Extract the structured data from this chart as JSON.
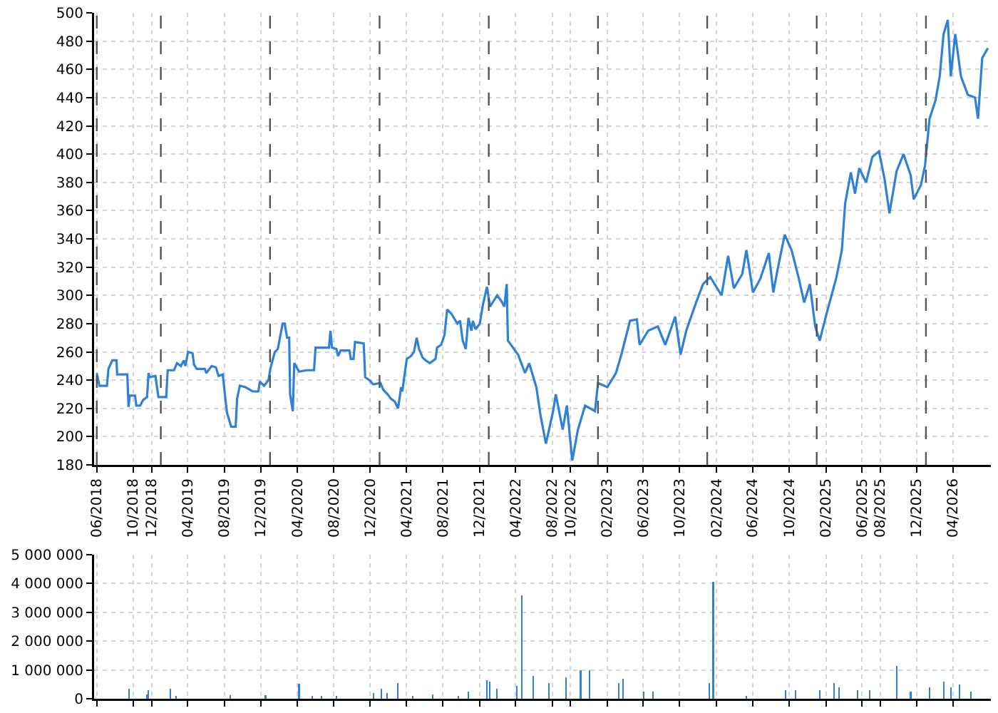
{
  "chart_data": [
    {
      "type": "line",
      "x": [
        "2018-06-01",
        "2018-06-10",
        "2018-07-05",
        "2018-07-10",
        "2018-07-23",
        "2018-08-06",
        "2018-08-08",
        "2018-09-11",
        "2018-09-15",
        "2018-09-19",
        "2018-10-07",
        "2018-10-11",
        "2018-10-24",
        "2018-11-03",
        "2018-11-16",
        "2018-11-21",
        "2018-11-25",
        "2018-12-14",
        "2018-12-24",
        "2019-01-19",
        "2019-01-24",
        "2019-02-14",
        "2019-02-24",
        "2019-03-09",
        "2019-03-19",
        "2019-03-24",
        "2019-04-02",
        "2019-04-17",
        "2019-04-22",
        "2019-05-01",
        "2019-05-28",
        "2019-06-02",
        "2019-06-20",
        "2019-07-04",
        "2019-07-13",
        "2019-07-27",
        "2019-08-03",
        "2019-08-10",
        "2019-08-24",
        "2019-09-08",
        "2019-09-13",
        "2019-09-22",
        "2019-10-11",
        "2019-11-04",
        "2019-11-23",
        "2019-11-28",
        "2019-12-12",
        "2019-12-27",
        "2020-01-02",
        "2020-01-17",
        "2020-01-27",
        "2020-02-12",
        "2020-02-19",
        "2020-02-27",
        "2020-03-05",
        "2020-03-08",
        "2020-03-17",
        "2020-03-22",
        "2020-04-07",
        "2020-05-02",
        "2020-05-27",
        "2020-06-01",
        "2020-07-16",
        "2020-07-21",
        "2020-07-26",
        "2020-08-10",
        "2020-08-15",
        "2020-08-24",
        "2020-09-22",
        "2020-09-27",
        "2020-10-06",
        "2020-10-11",
        "2020-11-09",
        "2020-11-14",
        "2020-11-28",
        "2020-12-11",
        "2021-01-04",
        "2021-01-14",
        "2021-01-28",
        "2021-02-07",
        "2021-02-20",
        "2021-03-04",
        "2021-03-14",
        "2021-03-18",
        "2021-04-02",
        "2021-04-16",
        "2021-04-26",
        "2021-05-05",
        "2021-05-13",
        "2021-05-25",
        "2021-06-04",
        "2021-06-18",
        "2021-07-07",
        "2021-07-12",
        "2021-07-26",
        "2021-08-06",
        "2021-08-15",
        "2021-08-29",
        "2021-09-18",
        "2021-09-27",
        "2021-10-06",
        "2021-10-16",
        "2021-10-25",
        "2021-11-04",
        "2021-11-09",
        "2021-11-18",
        "2021-12-02",
        "2021-12-12",
        "2021-12-26",
        "2022-01-05",
        "2022-01-29",
        "2022-02-12",
        "2022-02-22",
        "2022-03-02",
        "2022-03-06",
        "2022-04-09",
        "2022-05-02",
        "2022-05-16",
        "2022-06-09",
        "2022-06-23",
        "2022-07-11",
        "2022-08-04",
        "2022-08-13",
        "2022-09-05",
        "2022-09-19",
        "2022-10-07",
        "2022-10-26",
        "2022-11-19",
        "2022-12-22",
        "2023-01-01",
        "2023-02-01",
        "2023-03-02",
        "2023-03-20",
        "2023-04-18",
        "2023-05-11",
        "2023-05-20",
        "2023-06-18",
        "2023-07-20",
        "2023-08-14",
        "2023-09-16",
        "2023-10-04",
        "2023-10-23",
        "2023-11-25",
        "2023-12-18",
        "2024-01-11",
        "2024-02-18",
        "2024-03-11",
        "2024-03-30",
        "2024-04-27",
        "2024-05-11",
        "2024-06-02",
        "2024-06-27",
        "2024-07-25",
        "2024-08-09",
        "2024-08-23",
        "2024-09-16",
        "2024-10-09",
        "2024-11-02",
        "2024-11-20",
        "2024-12-09",
        "2024-12-27",
        "2025-01-11",
        "2025-02-04",
        "2025-03-07",
        "2025-03-26",
        "2025-04-06",
        "2025-04-25",
        "2025-05-09",
        "2025-05-23",
        "2025-06-15",
        "2025-07-06",
        "2025-07-28",
        "2025-08-16",
        "2025-09-01",
        "2025-09-25",
        "2025-10-18",
        "2025-11-11",
        "2025-11-21",
        "2025-12-15",
        "2025-12-29",
        "2026-01-13",
        "2026-02-02",
        "2026-02-16",
        "2026-03-01",
        "2026-03-15",
        "2026-03-25",
        "2026-04-09",
        "2026-04-28",
        "2026-05-21",
        "2026-06-14",
        "2026-06-24",
        "2026-07-08",
        "2026-07-27"
      ],
      "series": [
        {
          "color": "#2f80d8",
          "values": [
            245,
            236,
            236,
            248,
            254,
            254,
            244,
            244,
            221,
            229,
            229,
            222,
            222,
            226,
            228,
            245,
            242,
            243,
            228,
            228,
            247,
            247,
            252,
            250,
            254,
            250,
            260,
            259,
            251,
            248,
            248,
            245,
            250,
            249,
            243,
            244,
            230,
            217,
            207,
            207,
            227,
            236,
            235,
            232,
            232,
            239,
            236,
            240,
            248,
            260,
            262,
            280,
            280,
            270,
            270,
            230,
            218,
            252,
            246,
            247,
            247,
            263,
            263,
            275,
            263,
            262,
            257,
            261,
            261,
            255,
            255,
            267,
            266,
            242,
            240,
            237,
            238,
            233,
            230,
            227,
            225,
            220,
            235,
            232,
            255,
            257,
            260,
            270,
            262,
            256,
            254,
            252,
            255,
            263,
            265,
            272,
            290,
            287,
            280,
            282,
            268,
            262,
            284,
            275,
            282,
            276,
            280,
            293,
            306,
            292,
            300,
            296,
            292,
            308,
            268,
            258,
            245,
            252,
            235,
            215,
            195,
            218,
            230,
            205,
            222,
            183,
            205,
            222,
            218,
            238,
            235,
            245,
            258,
            282,
            283,
            265,
            275,
            278,
            265,
            285,
            258,
            275,
            295,
            308,
            313,
            300,
            328,
            305,
            315,
            332,
            302,
            312,
            330,
            302,
            318,
            343,
            332,
            312,
            295,
            308,
            278,
            268,
            288,
            312,
            332,
            365,
            387,
            372,
            390,
            380,
            398,
            402,
            382,
            358,
            388,
            400,
            385,
            368,
            378,
            392,
            425,
            438,
            455,
            485,
            495,
            455,
            485,
            455,
            442,
            440,
            425,
            468,
            475
          ]
        }
      ],
      "xlim": [
        "2018-05-23",
        "2026-08-06"
      ],
      "xticks": [
        {
          "value": "2018-06-01",
          "label": "06/2018"
        },
        {
          "value": "2018-10-01",
          "label": "10/2018"
        },
        {
          "value": "2018-12-01",
          "label": "12/2018"
        },
        {
          "value": "2019-04-01",
          "label": "04/2019"
        },
        {
          "value": "2019-08-01",
          "label": "08/2019"
        },
        {
          "value": "2019-12-01",
          "label": "12/2019"
        },
        {
          "value": "2020-04-01",
          "label": "04/2020"
        },
        {
          "value": "2020-08-01",
          "label": "08/2020"
        },
        {
          "value": "2020-12-01",
          "label": "12/2020"
        },
        {
          "value": "2021-04-01",
          "label": "04/2021"
        },
        {
          "value": "2021-08-01",
          "label": "08/2021"
        },
        {
          "value": "2021-12-01",
          "label": "12/2021"
        },
        {
          "value": "2022-04-01",
          "label": "04/2022"
        },
        {
          "value": "2022-08-01",
          "label": "08/2022"
        },
        {
          "value": "2022-10-01",
          "label": "10/2022"
        },
        {
          "value": "2023-02-01",
          "label": "02/2023"
        },
        {
          "value": "2023-06-01",
          "label": "06/2023"
        },
        {
          "value": "2023-10-01",
          "label": "10/2023"
        },
        {
          "value": "2024-02-01",
          "label": "02/2024"
        },
        {
          "value": "2024-06-01",
          "label": "06/2024"
        },
        {
          "value": "2024-10-01",
          "label": "10/2024"
        },
        {
          "value": "2025-02-01",
          "label": "02/2025"
        },
        {
          "value": "2025-06-01",
          "label": "06/2025"
        },
        {
          "value": "2025-08-01",
          "label": "08/2025"
        },
        {
          "value": "2025-12-01",
          "label": "12/2025"
        },
        {
          "value": "2026-04-01",
          "label": "04/2026"
        }
      ],
      "ylim": [
        180,
        500
      ],
      "yticks": [
        180,
        200,
        220,
        240,
        260,
        280,
        300,
        320,
        340,
        360,
        380,
        400,
        420,
        440,
        460,
        480,
        500
      ],
      "grid": true,
      "ref_lines": [
        {
          "axis": "x",
          "value": "2018-06-01",
          "color": "#555555",
          "line_style": "dashed"
        },
        {
          "axis": "x",
          "value": "2019-01-01",
          "color": "#555555",
          "line_style": "dashed"
        },
        {
          "axis": "x",
          "value": "2020-01-01",
          "color": "#555555",
          "line_style": "dashed"
        },
        {
          "axis": "x",
          "value": "2021-01-01",
          "color": "#555555",
          "line_style": "dashed"
        },
        {
          "axis": "x",
          "value": "2022-01-01",
          "color": "#555555",
          "line_style": "dashed"
        },
        {
          "axis": "x",
          "value": "2023-01-01",
          "color": "#555555",
          "line_style": "dashed"
        },
        {
          "axis": "x",
          "value": "2024-01-01",
          "color": "#555555",
          "line_style": "dashed"
        },
        {
          "axis": "x",
          "value": "2025-01-01",
          "color": "#555555",
          "line_style": "dashed"
        },
        {
          "axis": "x",
          "value": "2026-01-01",
          "color": "#555555",
          "line_style": "dashed"
        }
      ]
    },
    {
      "type": "bar",
      "x": [
        "2018-09-17",
        "2018-11-15",
        "2018-11-21",
        "2019-02-01",
        "2019-02-21",
        "2019-08-20",
        "2019-12-17",
        "2020-04-07",
        "2020-05-22",
        "2020-06-21",
        "2020-08-10",
        "2020-12-11",
        "2021-01-08",
        "2021-01-27",
        "2021-03-02",
        "2021-04-21",
        "2021-06-27",
        "2021-09-22",
        "2021-10-25",
        "2021-12-26",
        "2022-01-05",
        "2022-01-29",
        "2022-04-04",
        "2022-04-22",
        "2022-05-30",
        "2022-07-21",
        "2022-09-17",
        "2022-11-04",
        "2022-12-03",
        "2023-03-11",
        "2023-03-25",
        "2023-06-03",
        "2023-07-04",
        "2024-01-07",
        "2024-01-21",
        "2024-05-11",
        "2024-09-19",
        "2024-10-22",
        "2025-01-11",
        "2025-02-27",
        "2025-03-17",
        "2025-05-17",
        "2025-06-28",
        "2025-09-25",
        "2025-11-11",
        "2026-01-13",
        "2026-03-01",
        "2026-03-25",
        "2026-04-23",
        "2026-06-01"
      ],
      "series": [
        {
          "color": "#2f80d8",
          "values": [
            350000,
            150000,
            300000,
            350000,
            100000,
            120000,
            120000,
            520000,
            100000,
            100000,
            100000,
            200000,
            350000,
            200000,
            550000,
            100000,
            150000,
            100000,
            250000,
            650000,
            600000,
            350000,
            450000,
            3600000,
            800000,
            550000,
            750000,
            1000000,
            1000000,
            550000,
            700000,
            250000,
            250000,
            550000,
            4050000,
            100000,
            300000,
            300000,
            300000,
            550000,
            400000,
            300000,
            300000,
            1150000,
            250000,
            400000,
            600000,
            400000,
            500000,
            250000
          ]
        }
      ],
      "xlim": [
        "2018-05-23",
        "2026-08-06"
      ],
      "xticks": [
        {
          "value": "2018-06-01",
          "label": null
        },
        {
          "value": "2018-10-01",
          "label": null
        },
        {
          "value": "2018-12-01",
          "label": null
        },
        {
          "value": "2019-04-01",
          "label": null
        },
        {
          "value": "2019-08-01",
          "label": null
        },
        {
          "value": "2019-12-01",
          "label": null
        },
        {
          "value": "2020-04-01",
          "label": null
        },
        {
          "value": "2020-08-01",
          "label": null
        },
        {
          "value": "2020-12-01",
          "label": null
        },
        {
          "value": "2021-04-01",
          "label": null
        },
        {
          "value": "2021-08-01",
          "label": null
        },
        {
          "value": "2021-12-01",
          "label": null
        },
        {
          "value": "2022-04-01",
          "label": null
        },
        {
          "value": "2022-08-01",
          "label": null
        },
        {
          "value": "2022-10-01",
          "label": null
        },
        {
          "value": "2023-02-01",
          "label": null
        },
        {
          "value": "2023-06-01",
          "label": null
        },
        {
          "value": "2023-10-01",
          "label": null
        },
        {
          "value": "2024-02-01",
          "label": null
        },
        {
          "value": "2024-06-01",
          "label": null
        },
        {
          "value": "2024-10-01",
          "label": null
        },
        {
          "value": "2025-02-01",
          "label": null
        },
        {
          "value": "2025-06-01",
          "label": null
        },
        {
          "value": "2025-08-01",
          "label": null
        },
        {
          "value": "2025-12-01",
          "label": null
        },
        {
          "value": "2026-04-01",
          "label": null
        }
      ],
      "ylim": [
        0,
        5000000
      ],
      "yticks": [
        {
          "value": 0,
          "label": "0"
        },
        {
          "value": 1000000,
          "label": "1 000 000"
        },
        {
          "value": 2000000,
          "label": "2 000 000"
        },
        {
          "value": 3000000,
          "label": "3 000 000"
        },
        {
          "value": 4000000,
          "label": "4 000 000"
        },
        {
          "value": 5000000,
          "label": "5 000 000"
        }
      ],
      "grid": true,
      "tick_labels": "y"
    }
  ]
}
